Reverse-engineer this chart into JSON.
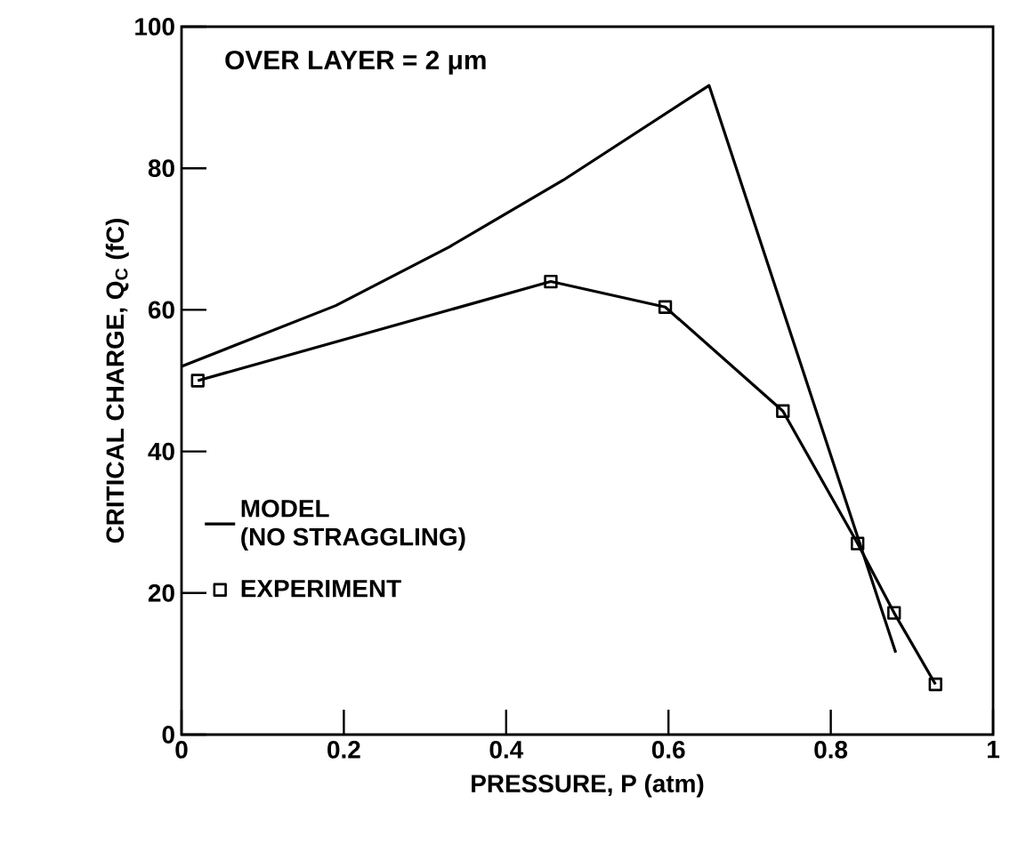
{
  "chart_data": {
    "type": "line",
    "xlabel": "PRESSURE, P (atm)",
    "ylabel": "CRITICAL CHARGE, Q$_{C}$ (fC)",
    "annotations": [
      "OVER LAYER = 2 μm"
    ],
    "xlim": [
      0,
      1
    ],
    "ylim": [
      0,
      100
    ],
    "xticks": [
      0,
      0.2,
      0.4,
      0.6,
      0.8,
      1
    ],
    "yticks": [
      0,
      20,
      40,
      60,
      80,
      100
    ],
    "grid": false,
    "legend": "left",
    "series": [
      {
        "name": "MODEL\n(NO STRAGGLING)",
        "color": "#000000",
        "marker": "none",
        "x": [
          0,
          0.19,
          0.33,
          0.47,
          0.65,
          0.88
        ],
        "values": [
          52,
          60.6,
          68.9,
          78.3,
          91.7,
          11.6
        ]
      },
      {
        "name": "EXPERIMENT",
        "color": "#000000",
        "marker": "square",
        "x": [
          0.02,
          0.455,
          0.596,
          0.741,
          0.833,
          0.878,
          0.929
        ],
        "values": [
          50,
          64,
          60.4,
          45.7,
          27,
          17.2,
          7.1
        ]
      }
    ]
  }
}
